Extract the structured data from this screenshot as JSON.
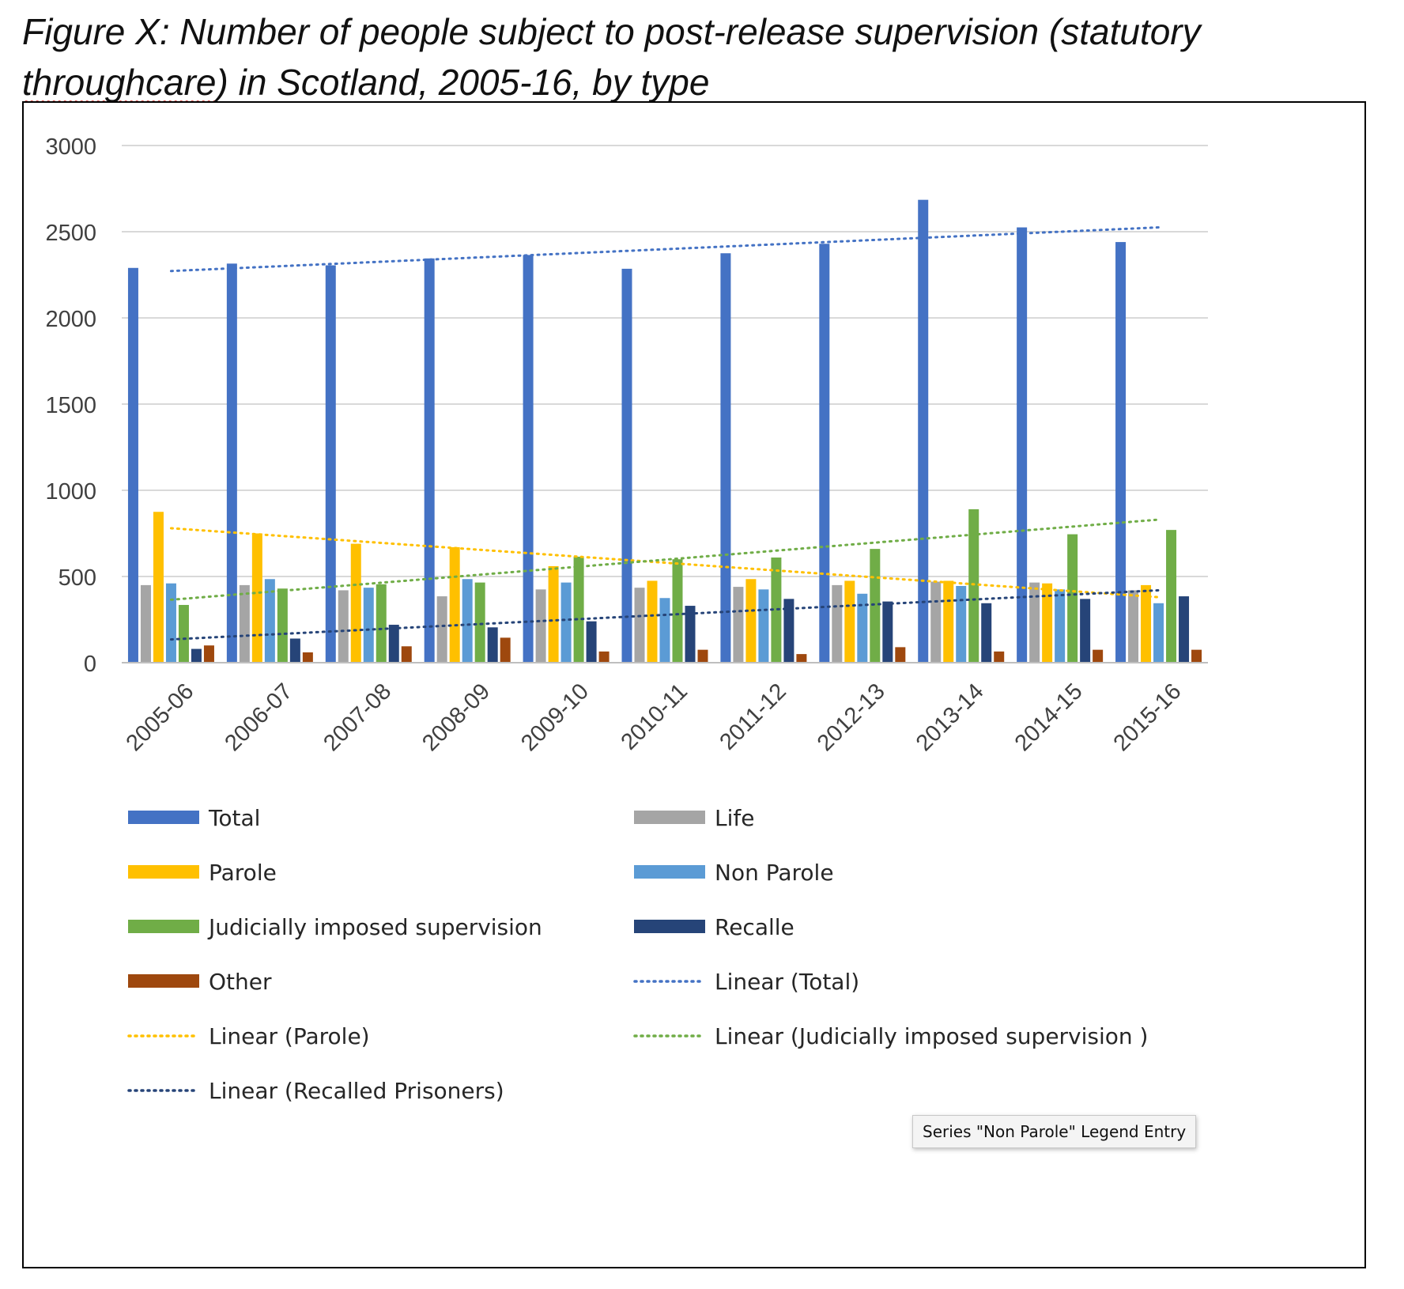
{
  "title": {
    "line1": "Figure X: Number of people subject to post-release supervision (statutory",
    "line2_underlined": "throughcare",
    "line2_rest": ") in Scotland, 2005-16, by type"
  },
  "chart_data": {
    "type": "bar",
    "categories": [
      "2005-06",
      "2006-07",
      "2007-08",
      "2008-09",
      "2009-10",
      "2010-11",
      "2011-12",
      "2012-13",
      "2013-14",
      "2014-15",
      "2015-16"
    ],
    "ylim": [
      0,
      3000
    ],
    "yticks": [
      "0",
      "500",
      "1000",
      "1500",
      "2000",
      "2500",
      "3000"
    ],
    "grid": true,
    "legend_position": "bottom",
    "series": [
      {
        "name": "Total",
        "color": "#4472C4",
        "values": [
          2290,
          2315,
          2305,
          2345,
          2365,
          2285,
          2375,
          2430,
          2685,
          2525,
          2440
        ]
      },
      {
        "name": "Life",
        "color": "#A5A5A5",
        "values": [
          450,
          450,
          420,
          385,
          425,
          435,
          440,
          450,
          470,
          465,
          420
        ]
      },
      {
        "name": "Parole",
        "color": "#FFC000",
        "values": [
          875,
          750,
          690,
          670,
          560,
          475,
          485,
          475,
          475,
          460,
          450
        ]
      },
      {
        "name": "Non Parole",
        "color": "#5B9BD5",
        "values": [
          460,
          485,
          435,
          485,
          465,
          375,
          425,
          400,
          445,
          425,
          345
        ]
      },
      {
        "name": "Judicially imposed supervision",
        "color": "#70AD47",
        "values": [
          335,
          430,
          455,
          465,
          615,
          600,
          610,
          660,
          890,
          745,
          770
        ]
      },
      {
        "name": "Recalled Prisoners",
        "color": "#264478",
        "values": [
          80,
          140,
          220,
          205,
          240,
          330,
          370,
          355,
          345,
          370,
          385
        ]
      },
      {
        "name": "Other",
        "color": "#9E480E",
        "values": [
          100,
          60,
          95,
          145,
          65,
          75,
          50,
          90,
          65,
          75,
          75
        ]
      }
    ],
    "trendlines": [
      {
        "name": "Linear  (Total)",
        "color": "#4472C4",
        "start": 2272,
        "end": 2525
      },
      {
        "name": "Linear  (Parole)",
        "color": "#FFC000",
        "start": 780,
        "end": 380
      },
      {
        "name": "Linear  (Judicially imposed supervision )",
        "color": "#70AD47",
        "start": 365,
        "end": 830
      },
      {
        "name": "Linear  (Recalled Prisoners)",
        "color": "#264478",
        "start": 135,
        "end": 420
      }
    ],
    "legend": [
      {
        "label": "Total",
        "kind": "bar",
        "color": "#4472C4"
      },
      {
        "label": "Life",
        "kind": "bar",
        "color": "#A5A5A5"
      },
      {
        "label": "Parole",
        "kind": "bar",
        "color": "#FFC000"
      },
      {
        "label": "Non Parole",
        "kind": "bar",
        "color": "#5B9BD5"
      },
      {
        "label": "Judicially imposed supervision",
        "kind": "bar",
        "color": "#70AD47"
      },
      {
        "label": "Recalle",
        "kind": "bar",
        "color": "#264478"
      },
      {
        "label": "Other",
        "kind": "bar",
        "color": "#9E480E"
      },
      {
        "label": "Linear  (Total)",
        "kind": "dotted",
        "color": "#4472C4"
      },
      {
        "label": "Linear  (Parole)",
        "kind": "dotted",
        "color": "#FFC000"
      },
      {
        "label": "Linear  (Judicially imposed supervision )",
        "kind": "dotted",
        "color": "#70AD47"
      },
      {
        "label": "Linear  (Recalled Prisoners)",
        "kind": "dotted",
        "color": "#264478"
      }
    ]
  },
  "tooltip": {
    "text": "Series \"Non Parole\" Legend Entry"
  }
}
